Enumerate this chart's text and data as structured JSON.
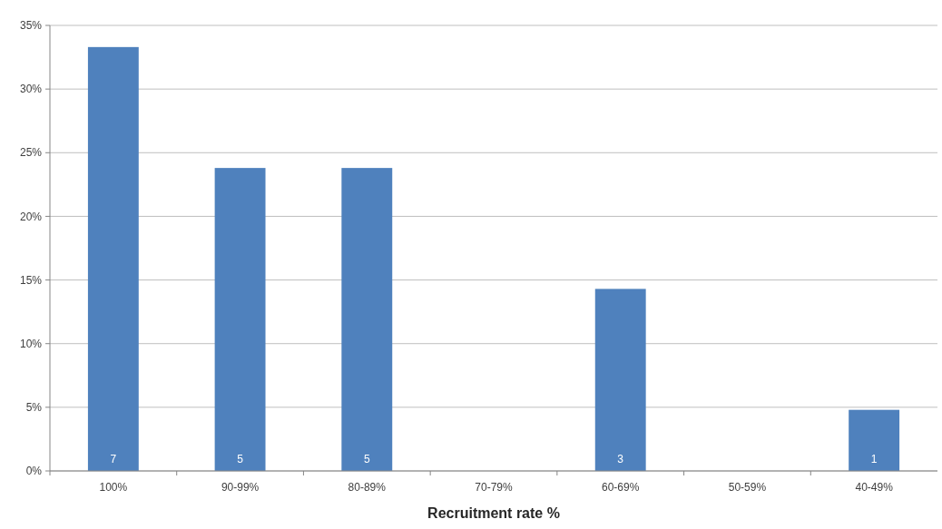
{
  "chart_data": {
    "type": "bar",
    "xlabel": "Recruitment rate %",
    "categories": [
      "100%",
      "90-99%",
      "80-89%",
      "70-79%",
      "60-69%",
      "50-59%",
      "40-49%"
    ],
    "values": [
      33.3,
      23.8,
      23.8,
      0,
      14.3,
      0,
      4.8
    ],
    "annotations": [
      {
        "text": "7",
        "x": "100%",
        "y": 0
      },
      {
        "text": "5",
        "x": "90-99%",
        "y": 0
      },
      {
        "text": "5",
        "x": "80-89%",
        "y": 0
      },
      {
        "text": "3",
        "x": "60-69%",
        "y": 0
      },
      {
        "text": "1",
        "x": "40-49%",
        "y": 0
      }
    ],
    "color": "#4f81bd",
    "ylim": [
      0,
      35
    ],
    "yticks": [
      {
        "value": 0,
        "label": "0%"
      },
      {
        "value": 5,
        "label": "5%"
      },
      {
        "value": 10,
        "label": "10%"
      },
      {
        "value": 15,
        "label": "15%"
      },
      {
        "value": 20,
        "label": "20%"
      },
      {
        "value": 25,
        "label": "25%"
      },
      {
        "value": 30,
        "label": "30%"
      },
      {
        "value": 35,
        "label": "35%"
      }
    ],
    "grid": "y"
  }
}
